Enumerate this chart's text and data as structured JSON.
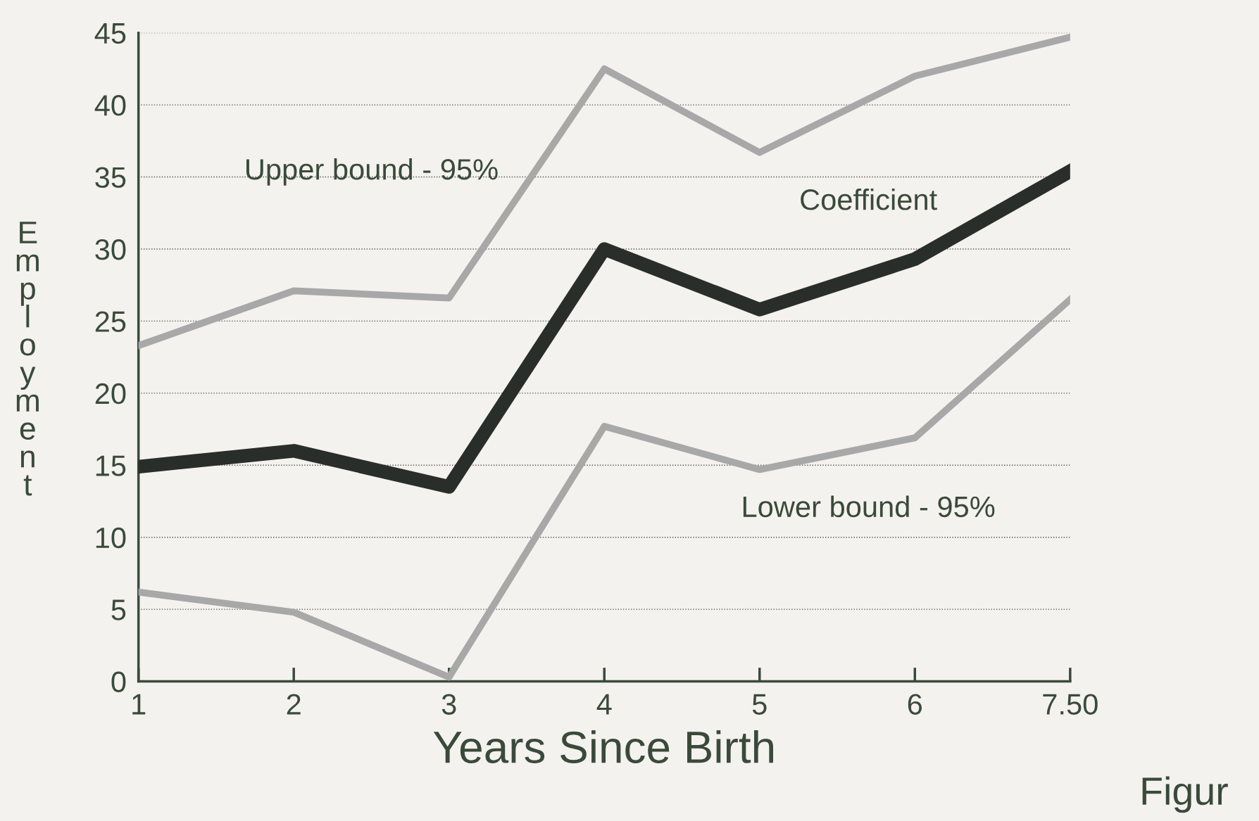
{
  "chart_data": {
    "type": "line",
    "xlabel": "Years Since Birth",
    "ylabel": "Employment",
    "categories": [
      "1",
      "2",
      "3",
      "4",
      "5",
      "6",
      "7.50"
    ],
    "series": [
      {
        "name": "Upper bound - 95%",
        "color": "#a8a8a8",
        "values": [
          23.3,
          27.1,
          26.6,
          42.5,
          36.7,
          42.0,
          44.7
        ]
      },
      {
        "name": "Coefficient",
        "color": "#2a2e2a",
        "values": [
          14.9,
          16.0,
          13.5,
          30.0,
          25.8,
          29.3,
          35.4
        ]
      },
      {
        "name": "Lower bound - 95%",
        "color": "#a8a8a8",
        "values": [
          6.2,
          4.8,
          0.3,
          17.7,
          14.7,
          16.9,
          26.5
        ]
      }
    ],
    "ylim": [
      0,
      45
    ],
    "yticks": [
      0,
      5,
      10,
      15,
      20,
      25,
      30,
      35,
      40,
      45
    ],
    "grid": "y",
    "marker": "none",
    "line_style": "solid",
    "annotations": [
      "Figur"
    ]
  }
}
